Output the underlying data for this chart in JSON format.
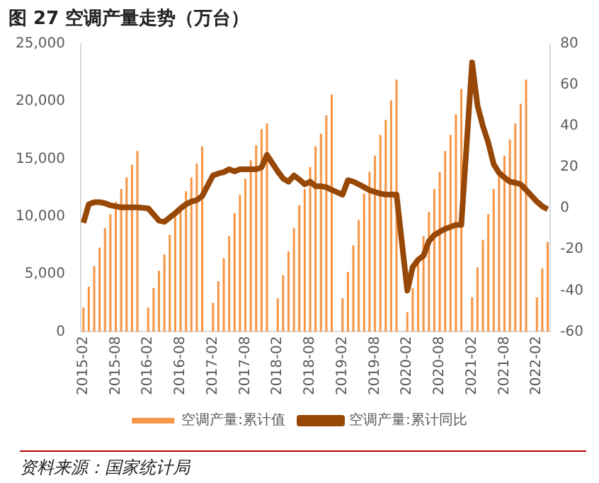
{
  "chart_data": {
    "type": "bar",
    "title": "图 27 空调产量走势（万台）",
    "categories": [
      "2015-02",
      null,
      null,
      null,
      null,
      null,
      "2015-08",
      null,
      null,
      null,
      null,
      null,
      "2016-02",
      null,
      null,
      null,
      null,
      null,
      "2016-08",
      null,
      null,
      null,
      null,
      null,
      "2017-02",
      null,
      null,
      null,
      null,
      null,
      "2017-08",
      null,
      null,
      null,
      null,
      null,
      "2018-02",
      null,
      null,
      null,
      null,
      null,
      "2018-08",
      null,
      null,
      null,
      null,
      null,
      "2019-02",
      null,
      null,
      null,
      null,
      null,
      "2019-08",
      null,
      null,
      null,
      null,
      null,
      "2020-02",
      null,
      null,
      null,
      null,
      null,
      "2020-08",
      null,
      null,
      null,
      null,
      null,
      "2021-02",
      null,
      null,
      null,
      null,
      null,
      "2021-08",
      null,
      null,
      null,
      null,
      null,
      "2022-02",
      null,
      null
    ],
    "series": [
      {
        "name": "空调产量:累计值",
        "axis": "y",
        "color": "#f79646",
        "values": [
          2100,
          3900,
          5700,
          7300,
          9000,
          10200,
          11300,
          12400,
          13400,
          14500,
          15700,
          null,
          2100,
          3800,
          5300,
          6700,
          8400,
          10000,
          11000,
          12200,
          13400,
          14600,
          16100,
          null,
          2500,
          4400,
          6400,
          8300,
          10300,
          11900,
          13300,
          14900,
          16200,
          17600,
          18100,
          null,
          2900,
          4900,
          7000,
          9000,
          11000,
          12400,
          14300,
          16100,
          17200,
          18800,
          20600,
          null,
          2900,
          5200,
          7500,
          9700,
          12000,
          13900,
          15300,
          17100,
          18400,
          20100,
          21900,
          null,
          1700,
          3800,
          6000,
          8300,
          10400,
          12400,
          13900,
          15700,
          17100,
          18900,
          21100,
          null,
          3000,
          5600,
          8000,
          10200,
          12400,
          13700,
          15300,
          16700,
          18100,
          19800,
          21900,
          null,
          3000,
          5500,
          7800
        ]
      },
      {
        "name": "空调产量:累计同比",
        "type": "line",
        "axis": "y2",
        "color": "#974706",
        "values": [
          -7,
          2,
          3,
          3,
          2.5,
          1.5,
          1,
          0.5,
          0.5,
          0.5,
          0.5,
          null,
          0,
          -3,
          -6,
          -6.5,
          -4.4,
          -2.4,
          0,
          2,
          3.3,
          4,
          6,
          null,
          16,
          17,
          17.6,
          19,
          18,
          19,
          19,
          19,
          19,
          20,
          26,
          null,
          18,
          14.5,
          13,
          16,
          14,
          11.7,
          13,
          10.8,
          10.8,
          10.3,
          9,
          null,
          6.7,
          13.7,
          13,
          11.7,
          10.3,
          8.9,
          8,
          7.2,
          6.7,
          6.7,
          6.7,
          null,
          -40,
          -28.5,
          -25,
          -23,
          -16,
          -13,
          -11.4,
          -10,
          -9,
          -8,
          -8,
          null,
          71,
          50,
          40,
          32,
          21.5,
          17.3,
          15,
          13,
          12.5,
          11.7,
          9,
          null,
          3.3,
          1,
          -0.4
        ]
      }
    ],
    "ylim": [
      0,
      25000
    ],
    "yticks": [
      {
        "value": 0,
        "label": "0"
      },
      {
        "value": 5000,
        "label": "5,000"
      },
      {
        "value": 10000,
        "label": "10,000"
      },
      {
        "value": 15000,
        "label": "15,000"
      },
      {
        "value": 20000,
        "label": "20,000"
      },
      {
        "value": 25000,
        "label": "25,000"
      }
    ],
    "y2lim": [
      -60,
      80
    ],
    "y2ticks": [
      -60,
      -40,
      -20,
      0,
      20,
      40,
      60,
      80
    ],
    "grid": false,
    "legend": "bottom",
    "annotations": [
      "资料来源：国家统计局"
    ]
  }
}
